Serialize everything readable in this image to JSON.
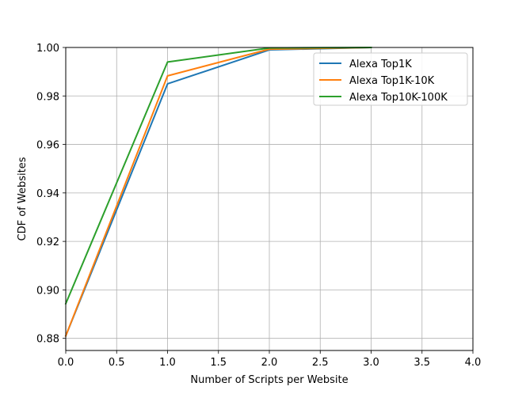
{
  "chart_data": {
    "type": "line",
    "title": "",
    "xlabel": "Number of Scripts per Website",
    "ylabel": "CDF of Websites",
    "xlim": [
      0.0,
      4.0
    ],
    "ylim": [
      0.875,
      1.0
    ],
    "grid": true,
    "legend_position": "top-right",
    "xticks": [
      0.0,
      0.5,
      1.0,
      1.5,
      2.0,
      2.5,
      3.0,
      3.5,
      4.0
    ],
    "xtick_labels": [
      "0.0",
      "0.5",
      "1.0",
      "1.5",
      "2.0",
      "2.5",
      "3.0",
      "3.5",
      "4.0"
    ],
    "yticks": [
      0.88,
      0.9,
      0.92,
      0.94,
      0.96,
      0.98,
      1.0
    ],
    "ytick_labels": [
      "0.88",
      "0.90",
      "0.92",
      "0.94",
      "0.96",
      "0.98",
      "1.00"
    ],
    "series": [
      {
        "name": "Alexa Top1K",
        "color": "#1f77b4",
        "x": [
          0,
          1,
          2,
          3
        ],
        "y": [
          0.881,
          0.985,
          0.999,
          1.0
        ]
      },
      {
        "name": "Alexa Top1K-10K",
        "color": "#ff7f0e",
        "x": [
          0,
          1,
          2,
          3
        ],
        "y": [
          0.881,
          0.9883,
          0.9993,
          1.0
        ]
      },
      {
        "name": "Alexa Top10K-100K",
        "color": "#2ca02c",
        "x": [
          0,
          1,
          2,
          3
        ],
        "y": [
          0.8943,
          0.994,
          0.9998,
          1.0
        ]
      }
    ]
  }
}
